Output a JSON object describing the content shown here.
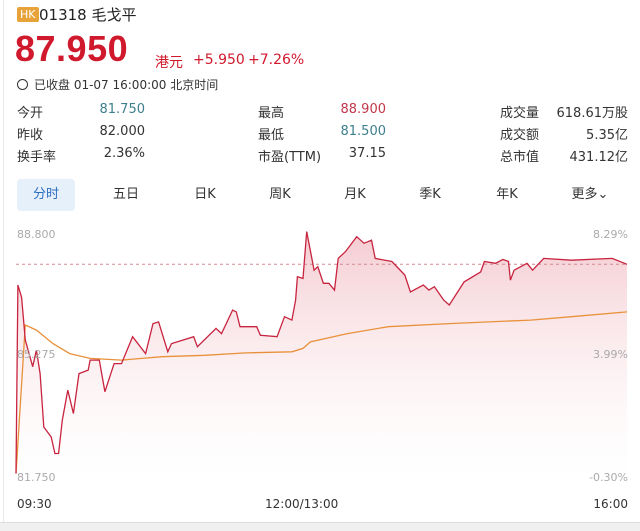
{
  "header": {
    "market_badge": "HK",
    "code_name": "01318 毛戈平",
    "price": "87.950",
    "currency": "港元",
    "change": "+5.950",
    "change_pct": "+7.26%",
    "status": "已收盘 01-07 16:00:00 北京时间",
    "up_color": "#d0192d"
  },
  "stats": [
    {
      "label": "今开",
      "value": "81.750",
      "color": "#3d7f8c"
    },
    {
      "label": "最高",
      "value": "88.900",
      "color": "#c2384a"
    },
    {
      "label": "成交量",
      "value": "618.61万股",
      "color": "#333333"
    },
    {
      "label": "昨收",
      "value": "82.000",
      "color": "#333333"
    },
    {
      "label": "最低",
      "value": "81.500",
      "color": "#3d7f8c"
    },
    {
      "label": "成交额",
      "value": "5.35亿",
      "color": "#333333"
    },
    {
      "label": "换手率",
      "value": "2.36%",
      "color": "#333333"
    },
    {
      "label": "市盈(TTM)",
      "value": "37.15",
      "color": "#333333"
    },
    {
      "label": "总市值",
      "value": "431.12亿",
      "color": "#333333"
    }
  ],
  "tabs": [
    {
      "label": "分时",
      "active": true
    },
    {
      "label": "五日"
    },
    {
      "label": "日K"
    },
    {
      "label": "周K"
    },
    {
      "label": "月K"
    },
    {
      "label": "季K"
    },
    {
      "label": "年K"
    },
    {
      "label": "更多⌄"
    }
  ],
  "chart_data": {
    "type": "line",
    "y_left_ticks": [
      "88.800",
      "85.275",
      "81.750"
    ],
    "y_right_ticks": [
      "8.29%",
      "3.99%",
      "-0.30%"
    ],
    "x_ticks": [
      "09:30",
      "12:00/13:00",
      "16:00"
    ],
    "ylim": [
      81.75,
      88.8
    ],
    "prev_close": 82.0,
    "last_price": 87.95,
    "price_color": "#c8243f",
    "avg_color": "#e8913a",
    "series": [
      {
        "type": "price",
        "points": [
          [
            "09:30",
            81.88
          ],
          [
            "09:31",
            87.35
          ],
          [
            "09:33",
            86.99
          ],
          [
            "09:35",
            85.75
          ],
          [
            "09:39",
            84.98
          ],
          [
            "09:41",
            85.46
          ],
          [
            "09:43",
            84.78
          ],
          [
            "09:45",
            83.23
          ],
          [
            "09:49",
            82.94
          ],
          [
            "09:51",
            82.46
          ],
          [
            "09:53",
            82.46
          ],
          [
            "09:55",
            83.43
          ],
          [
            "09:58",
            84.3
          ],
          [
            "10:01",
            83.62
          ],
          [
            "10:04",
            84.78
          ],
          [
            "10:09",
            84.88
          ],
          [
            "10:10",
            85.17
          ],
          [
            "10:15",
            85.17
          ],
          [
            "10:18",
            84.25
          ],
          [
            "10:23",
            85.07
          ],
          [
            "10:27",
            85.07
          ],
          [
            "10:33",
            85.85
          ],
          [
            "10:40",
            85.36
          ],
          [
            "10:44",
            86.23
          ],
          [
            "10:47",
            86.28
          ],
          [
            "10:52",
            85.41
          ],
          [
            "10:54",
            85.65
          ],
          [
            "11:06",
            85.85
          ],
          [
            "11:08",
            85.56
          ],
          [
            "11:18",
            86.09
          ],
          [
            "11:21",
            85.94
          ],
          [
            "11:27",
            86.62
          ],
          [
            "11:29",
            86.57
          ],
          [
            "11:31",
            86.14
          ],
          [
            "11:40",
            86.14
          ],
          [
            "11:42",
            85.89
          ],
          [
            "11:51",
            85.85
          ],
          [
            "11:55",
            86.43
          ],
          [
            "11:59",
            86.33
          ],
          [
            "13:01",
            86.91
          ],
          [
            "13:02",
            87.59
          ],
          [
            "13:05",
            87.54
          ],
          [
            "13:07",
            88.9
          ],
          [
            "13:11",
            87.78
          ],
          [
            "13:13",
            87.88
          ],
          [
            "13:16",
            87.4
          ],
          [
            "13:19",
            87.4
          ],
          [
            "13:22",
            87.2
          ],
          [
            "13:24",
            88.12
          ],
          [
            "13:28",
            88.32
          ],
          [
            "13:34",
            88.75
          ],
          [
            "13:38",
            88.56
          ],
          [
            "13:42",
            88.65
          ],
          [
            "13:44",
            88.12
          ],
          [
            "13:53",
            88.03
          ],
          [
            "14:00",
            87.64
          ],
          [
            "14:03",
            87.15
          ],
          [
            "14:10",
            87.35
          ],
          [
            "14:13",
            87.2
          ],
          [
            "14:16",
            87.3
          ],
          [
            "14:21",
            86.91
          ],
          [
            "14:24",
            86.77
          ],
          [
            "14:32",
            87.44
          ],
          [
            "14:41",
            87.73
          ],
          [
            "14:43",
            88.03
          ],
          [
            "14:49",
            87.98
          ],
          [
            "14:53",
            88.09
          ],
          [
            "14:56",
            88.03
          ],
          [
            "14:57",
            87.49
          ],
          [
            "14:59",
            87.78
          ],
          [
            "15:06",
            87.98
          ],
          [
            "15:09",
            87.78
          ],
          [
            "15:15",
            88.12
          ],
          [
            "15:30",
            88.07
          ],
          [
            "15:52",
            88.12
          ],
          [
            "16:00",
            87.95
          ]
        ]
      },
      {
        "type": "average",
        "points": [
          [
            "09:30",
            81.88
          ],
          [
            "09:35",
            86.19
          ],
          [
            "09:41",
            86.04
          ],
          [
            "09:50",
            85.65
          ],
          [
            "09:59",
            85.36
          ],
          [
            "10:10",
            85.22
          ],
          [
            "10:27",
            85.17
          ],
          [
            "10:38",
            85.22
          ],
          [
            "10:49",
            85.27
          ],
          [
            "11:12",
            85.31
          ],
          [
            "11:34",
            85.38
          ],
          [
            "11:59",
            85.41
          ],
          [
            "13:05",
            85.51
          ],
          [
            "13:09",
            85.7
          ],
          [
            "13:29",
            85.94
          ],
          [
            "13:51",
            86.14
          ],
          [
            "14:24",
            86.23
          ],
          [
            "15:08",
            86.33
          ],
          [
            "15:30",
            86.43
          ],
          [
            "16:00",
            86.57
          ]
        ]
      }
    ]
  }
}
